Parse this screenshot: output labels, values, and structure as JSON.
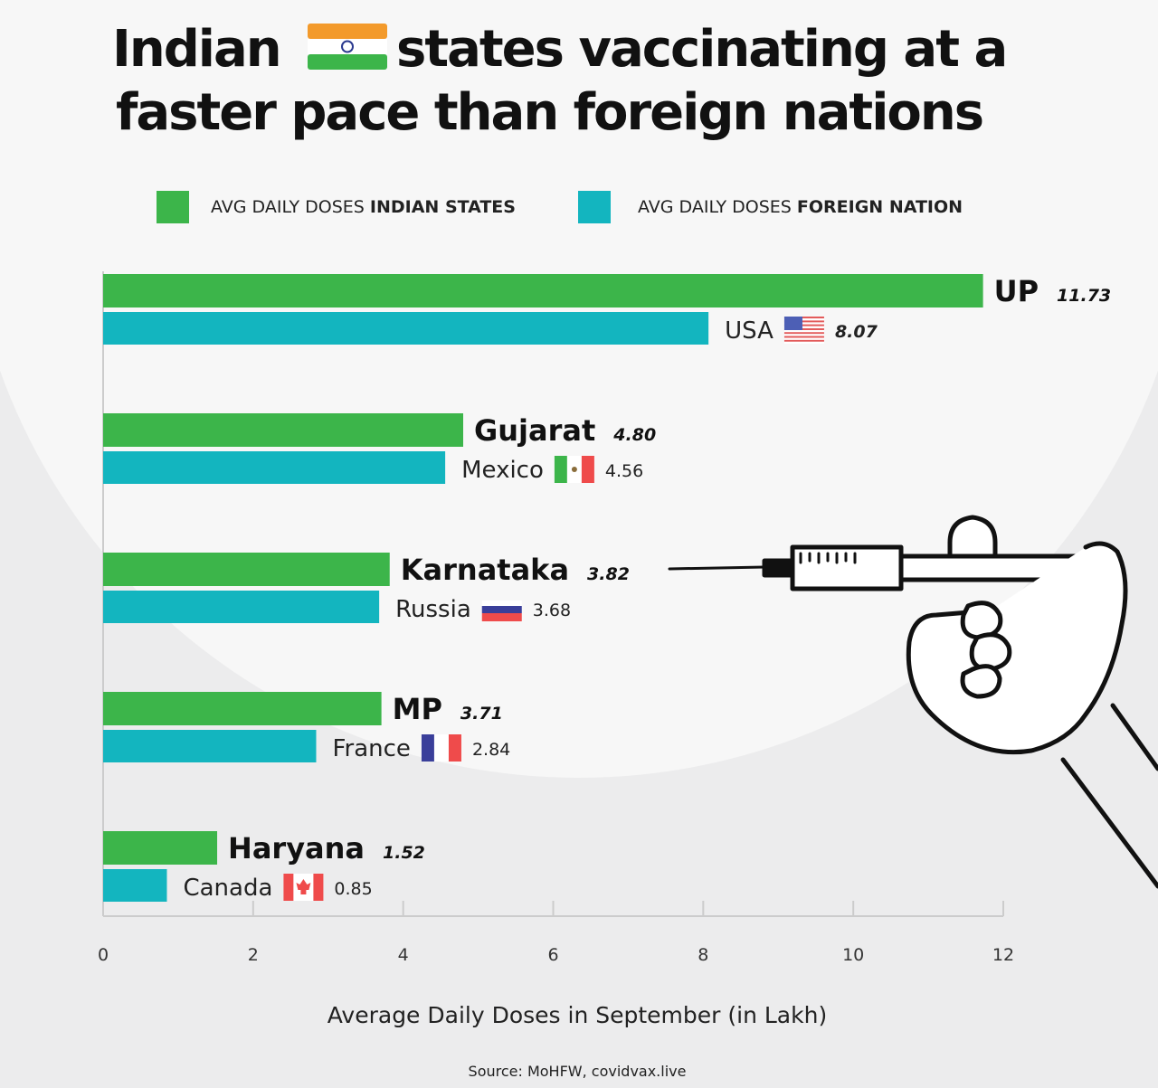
{
  "chart_data": {
    "type": "bar",
    "orientation": "horizontal",
    "title": "Indian states vaccinating at a faster pace than foreign nations",
    "title_line1_a": "Indian",
    "title_line1_b": "states vaccinating at a",
    "title_line2": "faster pace than foreign nations",
    "legend": [
      {
        "prefix": "AVG DAILY DOSES ",
        "bold": "INDIAN STATES",
        "color": "#3cb54a"
      },
      {
        "prefix": "AVG DAILY DOSES ",
        "bold": "FOREIGN NATION",
        "color": "#13b5bf"
      }
    ],
    "pairs": [
      {
        "state": "UP",
        "state_value": 11.73,
        "state_value_label": "11.73",
        "nation": "USA",
        "nation_value": 8.07,
        "nation_value_label": "8.07",
        "flag": "usa-flag"
      },
      {
        "state": "Gujarat",
        "state_value": 4.8,
        "state_value_label": "4.80",
        "nation": "Mexico",
        "nation_value": 4.56,
        "nation_value_label": "4.56",
        "flag": "mexico-flag"
      },
      {
        "state": "Karnataka",
        "state_value": 3.82,
        "state_value_label": "3.82",
        "nation": "Russia",
        "nation_value": 3.68,
        "nation_value_label": "3.68",
        "flag": "russia-flag"
      },
      {
        "state": "MP",
        "state_value": 3.71,
        "state_value_label": "3.71",
        "nation": "France",
        "nation_value": 2.84,
        "nation_value_label": "2.84",
        "flag": "france-flag"
      },
      {
        "state": "Haryana",
        "state_value": 1.52,
        "state_value_label": "1.52",
        "nation": "Canada",
        "nation_value": 0.85,
        "nation_value_label": "0.85",
        "flag": "canada-flag"
      }
    ],
    "xlim": [
      0,
      12
    ],
    "xticks": [
      "0",
      "2",
      "4",
      "6",
      "8",
      "10",
      "12"
    ],
    "xlabel": "Average Daily Doses in September (in Lakh)",
    "ylabel": "",
    "grid": false,
    "legend_position": "top",
    "source": "Source: MoHFW, covidvax.live"
  }
}
